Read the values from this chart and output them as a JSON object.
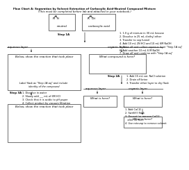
{
  "title_line1": "Flow Chart A: Separation by Solvent Extraction of Carboxylic Acid-Neutral Compound Mixture",
  "title_line2": "(This must be completed before lab and attached in your notebook.)",
  "bg_color": "#ffffff",
  "step1A_label": "Step 1A",
  "step1A_steps": "1. 1.0 g of mixture in 30 mL hexane\n2. Dissolve in 25 mL diethyl ether\n3. Transfer to sep funnel\n4. Add 10 mL 2N HCl and 10 mL 6M NaOH\n5. Draw off and collect aqueous layer \"Step 1A aq\"\n6. Add another 10 mL 6 M NaOH\n7. Draw off and combine with \"Step 1A aq\"",
  "aq_layer_label1": "aqueous layer",
  "org_layer_label1": "organic layer",
  "box_below_rxn": "Below, show the reaction that took place",
  "box_what_compound": "What compound is here?",
  "step2A_label": "Step 2A",
  "step2A_steps": "1. Add 15 mL sat. NaCl solution\n2. Drain off brine\n3. Transfer ether layer to dry flask",
  "label_step1Aaq": "Label flask as \"Step 1A aq\" and include\nidentity of the compound",
  "aq_layer_label2": "aqueous layer",
  "org_layer_label2": "organic layer",
  "step3A_label": "Step 3A",
  "step3A_steps": "1. Dissolve in water\n2. Slowly add ___ mL of 6M HCl\n3. Check that it is acidic to pH paper\n4. Collect product by vacuum filtration",
  "box_what_here2a": "What is here?",
  "box_what_here2b": "What is here?",
  "box_below_rxn2": "Below, show the reaction that took place",
  "step3A_right_steps": "1. Add CaCl2\n2. Swirl/fill flask\n3. Decant (or remove CaCl2\n   after 15 min)\n4. Use rotovap to remove solvent",
  "box_what_final": "What is here?"
}
